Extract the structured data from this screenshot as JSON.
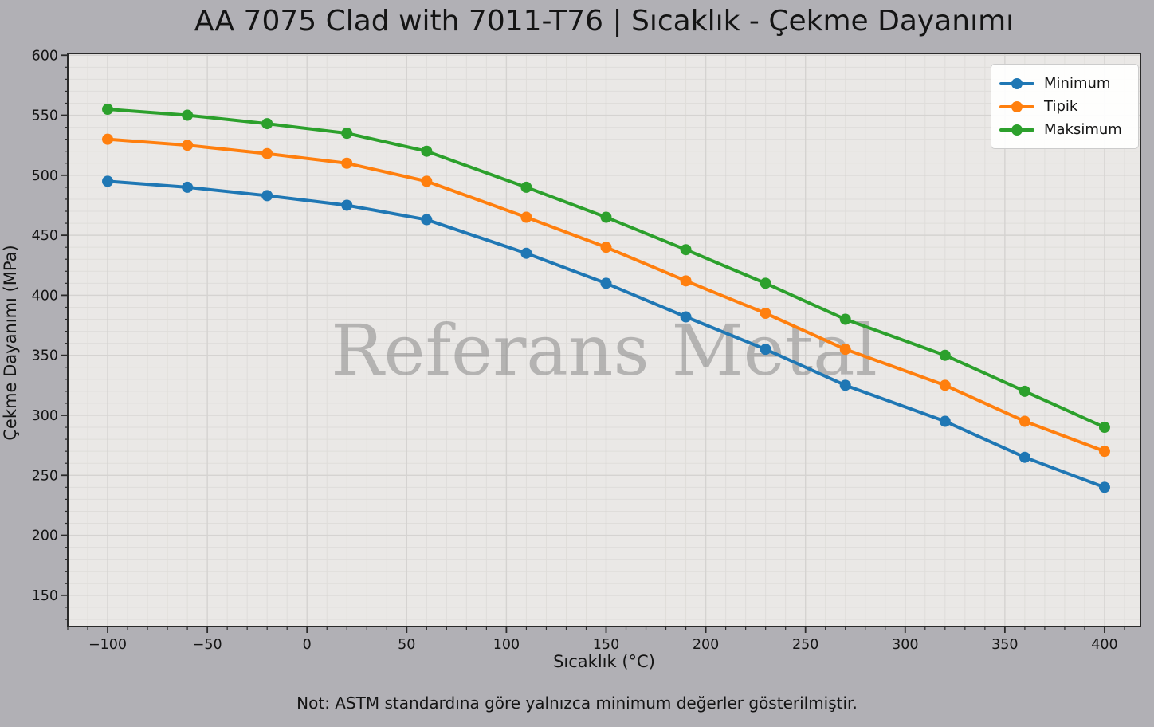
{
  "title": "AA 7075 Clad with 7011-T76 | Sıcaklık - Çekme Dayanımı",
  "watermark": "Referans Metal",
  "footer_note": "Not: ASTM standardına göre yalnızca minimum değerler gösterilmiştir.",
  "chart_data": {
    "type": "line",
    "x": [
      -100,
      -60,
      -20,
      20,
      60,
      110,
      150,
      190,
      230,
      270,
      320,
      360,
      400
    ],
    "series": [
      {
        "name": "Minimum",
        "color": "#1f77b4",
        "values": [
          495,
          490,
          483,
          475,
          463,
          435,
          410,
          382,
          355,
          325,
          295,
          265,
          240
        ]
      },
      {
        "name": "Tipik",
        "color": "#ff7f0e",
        "values": [
          530,
          525,
          518,
          510,
          495,
          465,
          440,
          412,
          385,
          355,
          325,
          295,
          270
        ]
      },
      {
        "name": "Maksimum",
        "color": "#2ca02c",
        "values": [
          555,
          550,
          543,
          535,
          520,
          490,
          465,
          438,
          410,
          380,
          350,
          320,
          290
        ]
      }
    ],
    "xlabel": "Sıcaklık (°C)",
    "ylabel": "Çekme Dayanımı (MPa)",
    "xlim": [
      -120,
      418
    ],
    "ylim": [
      124,
      601.5
    ],
    "xticks": [
      -100,
      -50,
      0,
      50,
      100,
      150,
      200,
      250,
      300,
      350,
      400
    ],
    "yticks": [
      150,
      200,
      250,
      300,
      350,
      400,
      450,
      500,
      550,
      600
    ],
    "minor_tick_step_x": 10,
    "minor_tick_step_y": 10,
    "grid": true,
    "legend_position": "upper right",
    "marker": "circle",
    "line_width": 4
  },
  "colors": {
    "figure_bg": "#b1b0b5",
    "plot_bg": "#eae8e6",
    "grid_major": "#d5d3d1",
    "grid_minor": "#dfddda",
    "spine": "#2a2a2a",
    "tick": "#2a2a2a",
    "text": "#141414",
    "watermark": "#808080",
    "legend_bg": "#ffffff",
    "legend_border": "#cccccc"
  }
}
